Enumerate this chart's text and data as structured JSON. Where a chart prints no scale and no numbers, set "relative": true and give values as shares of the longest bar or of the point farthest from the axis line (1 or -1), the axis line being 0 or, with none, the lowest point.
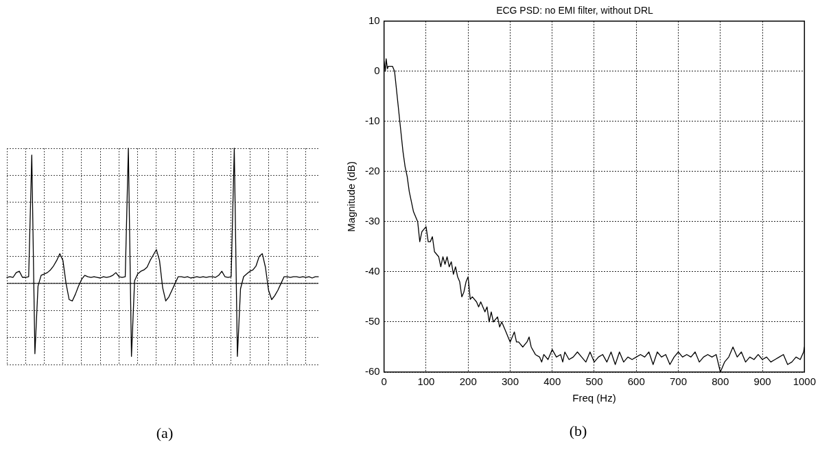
{
  "chart_data": [
    {
      "type": "line",
      "relative": true,
      "grid": true,
      "color": "#000000",
      "categories": [
        null,
        null,
        null,
        null,
        null,
        null,
        null,
        null,
        null,
        null,
        null,
        null,
        null,
        null,
        null,
        null,
        null,
        null,
        null,
        null,
        null,
        null,
        null,
        null,
        null,
        null,
        null,
        null,
        null,
        null,
        null,
        null,
        null,
        null,
        null,
        null,
        null,
        null,
        null,
        null,
        null,
        null,
        null,
        null,
        null,
        null,
        null,
        null,
        null,
        null,
        null,
        null,
        null,
        null,
        null,
        null,
        null,
        null,
        null,
        null,
        null,
        null,
        null,
        null,
        null,
        null,
        null,
        null,
        null,
        null,
        null,
        null,
        null,
        null,
        null,
        null,
        null,
        null,
        null,
        null,
        null,
        null,
        null,
        null,
        null,
        null,
        null,
        null,
        null,
        null,
        null,
        null,
        null,
        null,
        null,
        null,
        null,
        null,
        null,
        null,
        null
      ],
      "values": [
        0.045,
        0.05,
        0.045,
        0.08,
        0.09,
        0.045,
        0.045,
        0.05,
        0.95,
        -0.52,
        -0.02,
        0.06,
        0.07,
        0.08,
        0.1,
        0.13,
        0.17,
        0.22,
        0.17,
        0.0,
        -0.12,
        -0.13,
        -0.08,
        -0.02,
        0.03,
        0.06,
        0.05,
        0.045,
        0.05,
        0.045,
        0.04,
        0.05,
        0.045,
        0.05,
        0.06,
        0.08,
        0.05,
        0.045,
        0.05,
        1.0,
        -0.54,
        0.02,
        0.07,
        0.09,
        0.1,
        0.12,
        0.17,
        0.21,
        0.25,
        0.17,
        -0.03,
        -0.13,
        -0.1,
        -0.05,
        0.0,
        0.05,
        0.05,
        0.045,
        0.05,
        0.04,
        0.045,
        0.05,
        0.045,
        0.05,
        0.045,
        0.05,
        0.05,
        0.045,
        0.06,
        0.09,
        0.05,
        0.045,
        0.05,
        1.0,
        -0.54,
        -0.04,
        0.05,
        0.07,
        0.09,
        0.1,
        0.13,
        0.2,
        0.22,
        0.12,
        -0.05,
        -0.12,
        -0.09,
        -0.05,
        0.0,
        0.05,
        0.05,
        0.045,
        0.05,
        0.05,
        0.045,
        0.05,
        0.045,
        0.05,
        0.04,
        0.05,
        0.05
      ],
      "annotations": [
        "(a)"
      ]
    },
    {
      "type": "line",
      "title": "ECG PSD: no EMI filter, without DRL",
      "xlabel": "Freq (Hz)",
      "ylabel": "Magnitude (dB)",
      "grid": true,
      "color": "#000000",
      "x": [
        0,
        3,
        5,
        8,
        10,
        20,
        25,
        30,
        35,
        40,
        45,
        50,
        55,
        60,
        70,
        80,
        85,
        90,
        95,
        100,
        105,
        110,
        115,
        120,
        130,
        135,
        140,
        145,
        150,
        155,
        160,
        165,
        170,
        175,
        180,
        185,
        190,
        195,
        200,
        205,
        210,
        220,
        225,
        230,
        240,
        245,
        250,
        255,
        260,
        270,
        275,
        280,
        290,
        295,
        300,
        310,
        315,
        320,
        330,
        340,
        345,
        350,
        360,
        370,
        375,
        380,
        390,
        395,
        400,
        410,
        420,
        425,
        430,
        440,
        450,
        460,
        470,
        480,
        490,
        500,
        510,
        520,
        530,
        540,
        550,
        560,
        570,
        580,
        590,
        600,
        610,
        620,
        630,
        640,
        650,
        660,
        670,
        680,
        690,
        700,
        710,
        720,
        730,
        740,
        750,
        760,
        770,
        780,
        790,
        800,
        810,
        820,
        830,
        840,
        850,
        860,
        870,
        880,
        890,
        900,
        910,
        920,
        930,
        940,
        950,
        960,
        970,
        980,
        990,
        998,
        1000
      ],
      "values": [
        2,
        0,
        2.5,
        0.5,
        1,
        1,
        0,
        -4,
        -8,
        -12,
        -16,
        -19,
        -21,
        -24,
        -28,
        -30,
        -34,
        -32,
        -31.5,
        -31,
        -34,
        -34,
        -33,
        -36,
        -37,
        -39,
        -37,
        -38.5,
        -37,
        -39,
        -38,
        -40.5,
        -39,
        -41,
        -42,
        -45,
        -44,
        -42,
        -41,
        -45.5,
        -45,
        -46,
        -47,
        -46,
        -48,
        -47,
        -50,
        -48,
        -50,
        -49,
        -51,
        -50,
        -52,
        -53,
        -54,
        -52,
        -54,
        -54,
        -55,
        -54,
        -53,
        -55,
        -56.5,
        -57,
        -58,
        -56.5,
        -57.5,
        -56.5,
        -55.5,
        -57,
        -56.5,
        -58,
        -56,
        -57.5,
        -57,
        -56,
        -57,
        -58,
        -56,
        -58,
        -57,
        -56.5,
        -58,
        -56,
        -58.5,
        -56,
        -58,
        -57,
        -57.5,
        -57,
        -56.5,
        -57,
        -56,
        -58.5,
        -56,
        -57,
        -56.5,
        -58.5,
        -57,
        -56,
        -57,
        -56.5,
        -57,
        -56,
        -58,
        -57,
        -56.5,
        -57,
        -56.5,
        -60,
        -58,
        -57,
        -55,
        -57,
        -56,
        -58,
        -57,
        -57.5,
        -56.5,
        -57.5,
        -57,
        -58,
        -57.5,
        -57,
        -56.5,
        -58.5,
        -58,
        -57,
        -57.5,
        -56,
        -55
      ],
      "xlim": [
        0,
        1000
      ],
      "xticks": [
        0,
        100,
        200,
        300,
        400,
        500,
        600,
        700,
        800,
        900,
        1000
      ],
      "ylim": [
        -60,
        10
      ],
      "yticks": [
        -60,
        -50,
        -40,
        -30,
        -20,
        -10,
        0,
        10
      ],
      "annotations": [
        "(b)"
      ]
    }
  ]
}
